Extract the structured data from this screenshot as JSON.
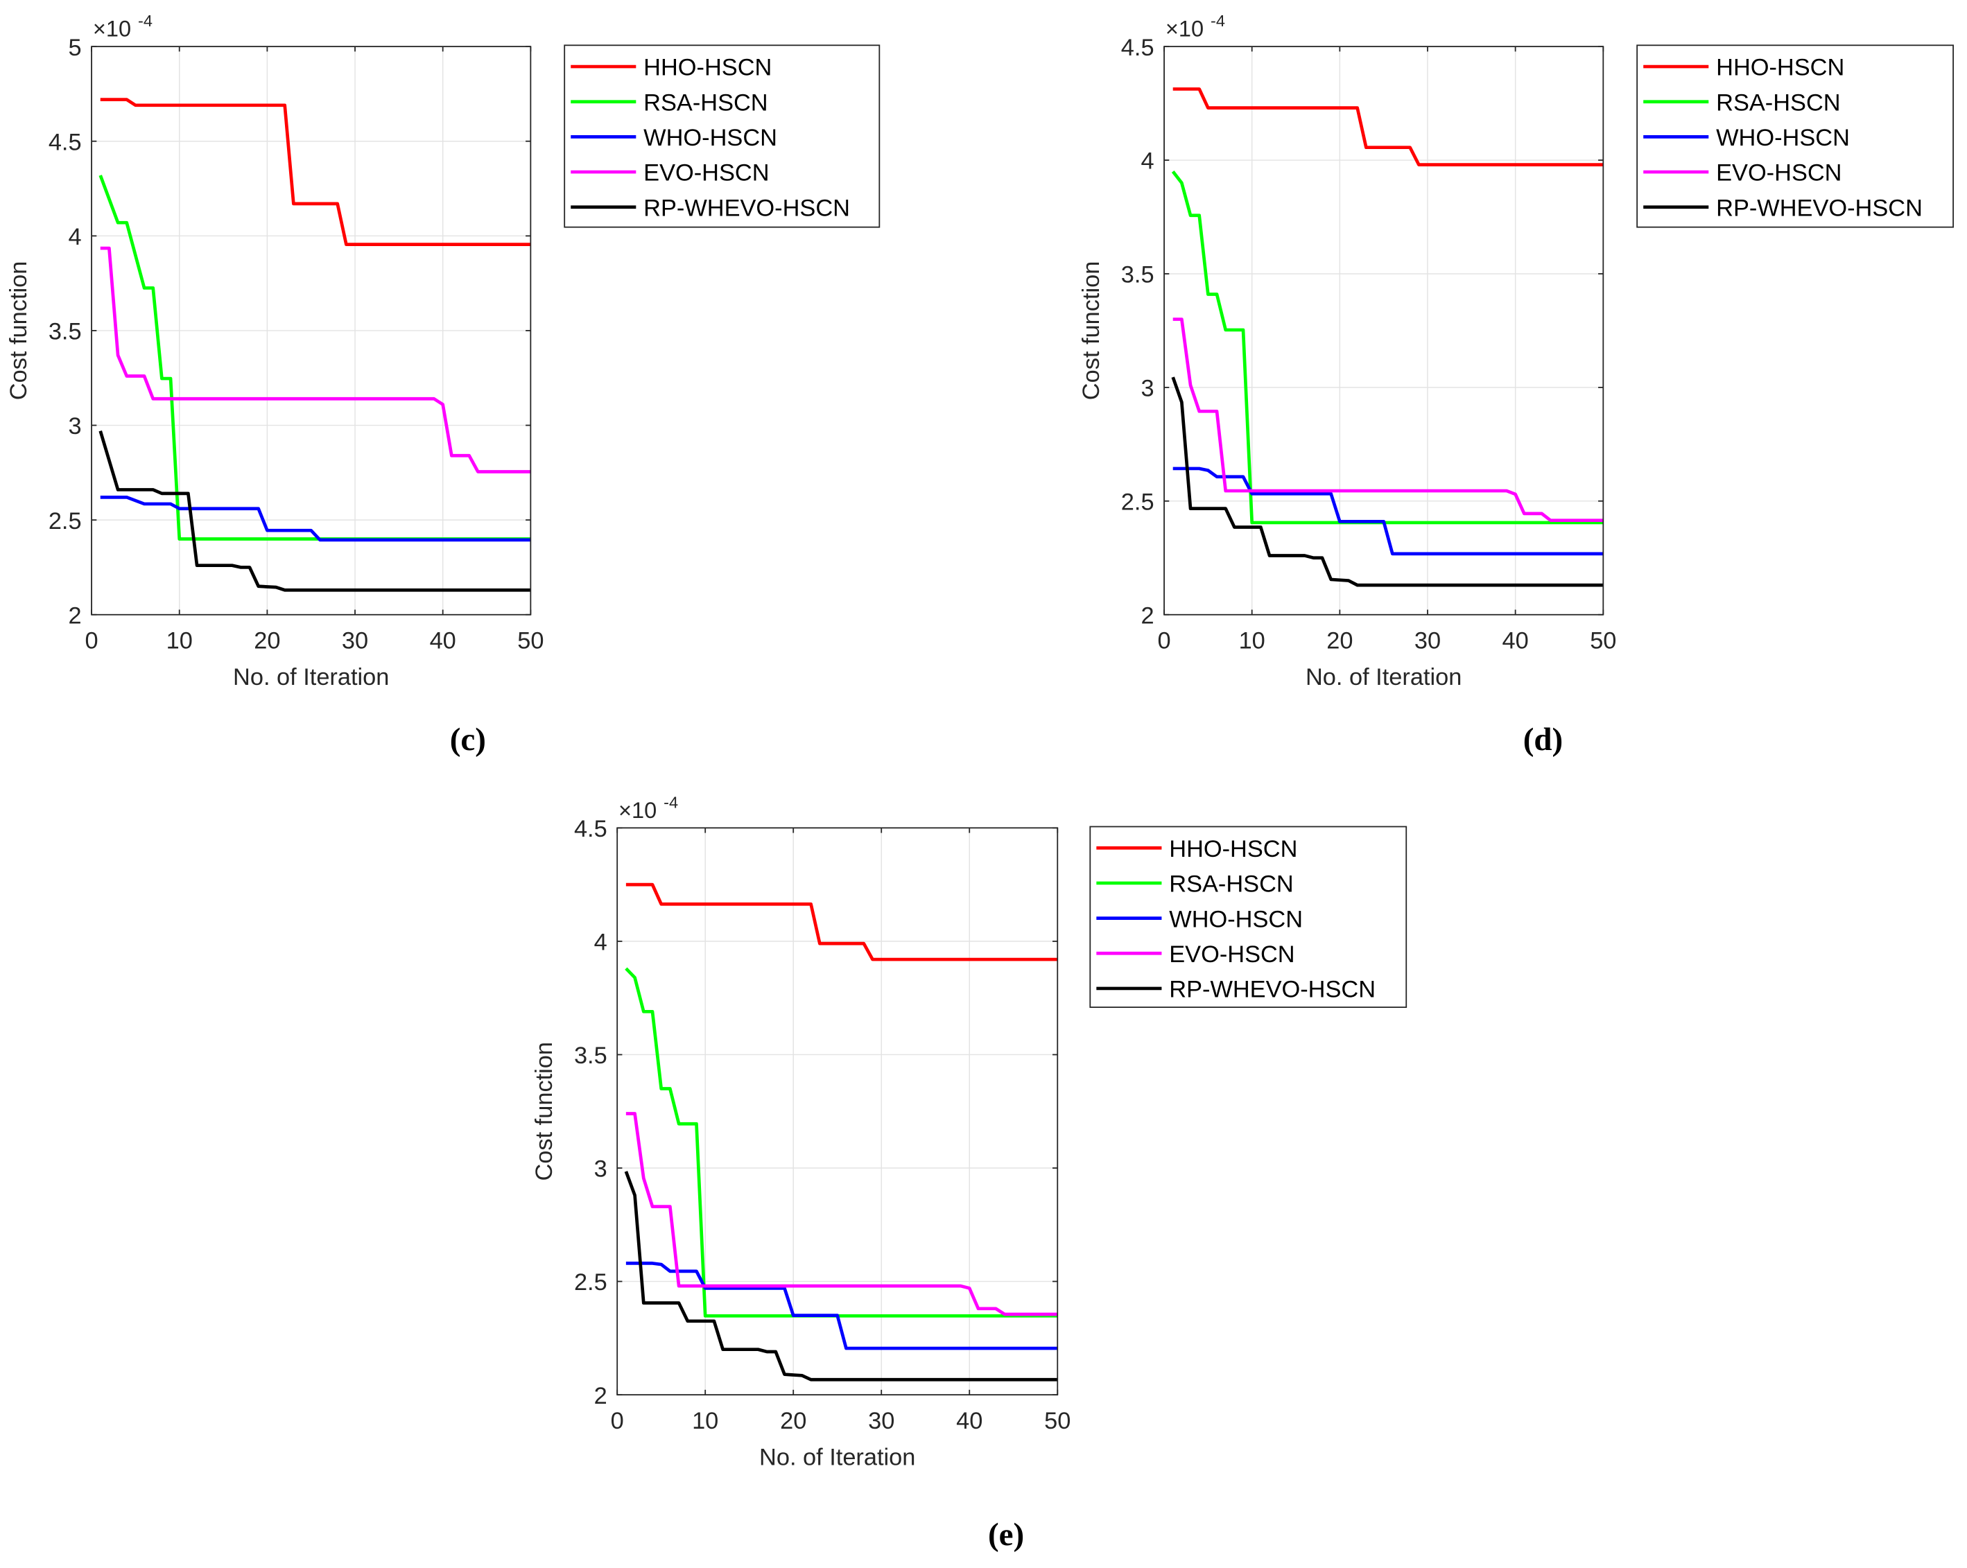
{
  "chart_data": [
    {
      "type": "line",
      "title": "(c)",
      "xlabel": "No. of Iteration",
      "ylabel": "Cost function",
      "y_multiplier_base": "×10",
      "y_multiplier_exp": "-4",
      "xlim": [
        0,
        50
      ],
      "ylim": [
        2,
        5
      ],
      "xticks": [
        0,
        10,
        20,
        30,
        40,
        50
      ],
      "yticks": [
        2,
        2.5,
        3,
        3.5,
        4,
        4.5,
        5
      ],
      "grid": true,
      "legend_position": "outside-right-top",
      "series": [
        {
          "name": "HHO-HSCN",
          "color": "#ff0000",
          "points": [
            [
              1,
              4.72
            ],
            [
              4,
              4.72
            ],
            [
              5,
              4.69
            ],
            [
              22,
              4.69
            ],
            [
              23,
              4.17
            ],
            [
              28,
              4.17
            ],
            [
              29,
              3.955
            ],
            [
              50,
              3.955
            ]
          ]
        },
        {
          "name": "RSA-HSCN",
          "color": "#00ff00",
          "points": [
            [
              1,
              4.32
            ],
            [
              3,
              4.07
            ],
            [
              4,
              4.07
            ],
            [
              6,
              3.725
            ],
            [
              7,
              3.725
            ],
            [
              8,
              3.247
            ],
            [
              9,
              3.247
            ],
            [
              10,
              2.4
            ],
            [
              50,
              2.4
            ]
          ]
        },
        {
          "name": "WHO-HSCN",
          "color": "#0000ff",
          "points": [
            [
              1,
              2.62
            ],
            [
              4,
              2.62
            ],
            [
              6,
              2.585
            ],
            [
              9,
              2.585
            ],
            [
              10,
              2.56
            ],
            [
              19,
              2.56
            ],
            [
              20,
              2.445
            ],
            [
              25,
              2.445
            ],
            [
              26,
              2.395
            ],
            [
              50,
              2.395
            ]
          ]
        },
        {
          "name": "EVO-HSCN",
          "color": "#ff00ff",
          "points": [
            [
              1,
              3.935
            ],
            [
              2,
              3.935
            ],
            [
              3,
              3.37
            ],
            [
              4,
              3.26
            ],
            [
              6,
              3.26
            ],
            [
              7,
              3.14
            ],
            [
              39,
              3.14
            ],
            [
              40,
              3.11
            ],
            [
              41,
              2.84
            ],
            [
              43,
              2.84
            ],
            [
              44,
              2.755
            ],
            [
              50,
              2.755
            ]
          ]
        },
        {
          "name": "RP-WHEVO-HSCN",
          "color": "#000000",
          "points": [
            [
              1,
              2.97
            ],
            [
              3,
              2.66
            ],
            [
              7,
              2.66
            ],
            [
              8,
              2.64
            ],
            [
              11,
              2.64
            ],
            [
              12,
              2.26
            ],
            [
              16,
              2.26
            ],
            [
              17,
              2.25
            ],
            [
              18,
              2.25
            ],
            [
              19,
              2.15
            ],
            [
              21,
              2.145
            ],
            [
              22,
              2.13
            ],
            [
              50,
              2.13
            ]
          ]
        }
      ]
    },
    {
      "type": "line",
      "title": "(d)",
      "xlabel": "No. of Iteration",
      "ylabel": "Cost function",
      "y_multiplier_base": "×10",
      "y_multiplier_exp": "-4",
      "xlim": [
        0,
        50
      ],
      "ylim": [
        2,
        4.5
      ],
      "xticks": [
        0,
        10,
        20,
        30,
        40,
        50
      ],
      "yticks": [
        2,
        2.5,
        3,
        3.5,
        4,
        4.5
      ],
      "grid": true,
      "legend_position": "outside-right-top",
      "series": [
        {
          "name": "HHO-HSCN",
          "color": "#ff0000",
          "points": [
            [
              1,
              4.313
            ],
            [
              4,
              4.313
            ],
            [
              5,
              4.23
            ],
            [
              22,
              4.23
            ],
            [
              23,
              4.056
            ],
            [
              28,
              4.056
            ],
            [
              29,
              3.98
            ],
            [
              50,
              3.98
            ]
          ]
        },
        {
          "name": "RSA-HSCN",
          "color": "#00ff00",
          "points": [
            [
              1,
              3.95
            ],
            [
              2,
              3.9
            ],
            [
              3,
              3.757
            ],
            [
              4,
              3.757
            ],
            [
              5,
              3.41
            ],
            [
              6,
              3.41
            ],
            [
              7,
              3.253
            ],
            [
              9,
              3.253
            ],
            [
              10,
              2.405
            ],
            [
              50,
              2.405
            ]
          ]
        },
        {
          "name": "WHO-HSCN",
          "color": "#0000ff",
          "points": [
            [
              1,
              2.643
            ],
            [
              4,
              2.643
            ],
            [
              5,
              2.635
            ],
            [
              6,
              2.607
            ],
            [
              9,
              2.607
            ],
            [
              10,
              2.532
            ],
            [
              19,
              2.532
            ],
            [
              20,
              2.41
            ],
            [
              25,
              2.41
            ],
            [
              26,
              2.268
            ],
            [
              50,
              2.268
            ]
          ]
        },
        {
          "name": "EVO-HSCN",
          "color": "#ff00ff",
          "points": [
            [
              1,
              3.3
            ],
            [
              2,
              3.3
            ],
            [
              3,
              3.01
            ],
            [
              4,
              2.895
            ],
            [
              6,
              2.895
            ],
            [
              7,
              2.545
            ],
            [
              39,
              2.545
            ],
            [
              40,
              2.53
            ],
            [
              41,
              2.445
            ],
            [
              43,
              2.445
            ],
            [
              44,
              2.415
            ],
            [
              50,
              2.415
            ]
          ]
        },
        {
          "name": "RP-WHEVO-HSCN",
          "color": "#000000",
          "points": [
            [
              1,
              3.045
            ],
            [
              2,
              2.935
            ],
            [
              3,
              2.467
            ],
            [
              7,
              2.467
            ],
            [
              8,
              2.385
            ],
            [
              11,
              2.385
            ],
            [
              12,
              2.26
            ],
            [
              16,
              2.26
            ],
            [
              17,
              2.25
            ],
            [
              18,
              2.25
            ],
            [
              19,
              2.155
            ],
            [
              21,
              2.15
            ],
            [
              22,
              2.13
            ],
            [
              50,
              2.13
            ]
          ]
        }
      ]
    },
    {
      "type": "line",
      "title": "(e)",
      "xlabel": "No. of Iteration",
      "ylabel": "Cost function",
      "y_multiplier_base": "×10",
      "y_multiplier_exp": "-4",
      "xlim": [
        0,
        50
      ],
      "ylim": [
        2,
        4.5
      ],
      "xticks": [
        0,
        10,
        20,
        30,
        40,
        50
      ],
      "yticks": [
        2,
        2.5,
        3,
        3.5,
        4,
        4.5
      ],
      "grid": true,
      "legend_position": "outside-right-top",
      "series": [
        {
          "name": "HHO-HSCN",
          "color": "#ff0000",
          "points": [
            [
              1,
              4.25
            ],
            [
              4,
              4.25
            ],
            [
              5,
              4.164
            ],
            [
              22,
              4.164
            ],
            [
              23,
              3.99
            ],
            [
              28,
              3.99
            ],
            [
              29,
              3.92
            ],
            [
              50,
              3.92
            ]
          ]
        },
        {
          "name": "RSA-HSCN",
          "color": "#00ff00",
          "points": [
            [
              1,
              3.88
            ],
            [
              2,
              3.84
            ],
            [
              3,
              3.69
            ],
            [
              4,
              3.69
            ],
            [
              5,
              3.35
            ],
            [
              6,
              3.35
            ],
            [
              7,
              3.195
            ],
            [
              9,
              3.195
            ],
            [
              10,
              2.348
            ],
            [
              50,
              2.348
            ]
          ]
        },
        {
          "name": "WHO-HSCN",
          "color": "#0000ff",
          "points": [
            [
              1,
              2.58
            ],
            [
              4,
              2.58
            ],
            [
              5,
              2.575
            ],
            [
              6,
              2.545
            ],
            [
              9,
              2.545
            ],
            [
              10,
              2.47
            ],
            [
              19,
              2.47
            ],
            [
              20,
              2.35
            ],
            [
              25,
              2.35
            ],
            [
              26,
              2.205
            ],
            [
              50,
              2.205
            ]
          ]
        },
        {
          "name": "EVO-HSCN",
          "color": "#ff00ff",
          "points": [
            [
              1,
              3.24
            ],
            [
              2,
              3.24
            ],
            [
              3,
              2.955
            ],
            [
              4,
              2.83
            ],
            [
              6,
              2.83
            ],
            [
              7,
              2.48
            ],
            [
              39,
              2.48
            ],
            [
              40,
              2.47
            ],
            [
              41,
              2.38
            ],
            [
              43,
              2.38
            ],
            [
              44,
              2.355
            ],
            [
              50,
              2.355
            ]
          ]
        },
        {
          "name": "RP-WHEVO-HSCN",
          "color": "#000000",
          "points": [
            [
              1,
              2.985
            ],
            [
              2,
              2.88
            ],
            [
              3,
              2.405
            ],
            [
              7,
              2.405
            ],
            [
              8,
              2.325
            ],
            [
              11,
              2.325
            ],
            [
              12,
              2.2
            ],
            [
              16,
              2.2
            ],
            [
              17,
              2.19
            ],
            [
              18,
              2.19
            ],
            [
              19,
              2.09
            ],
            [
              21,
              2.085
            ],
            [
              22,
              2.067
            ],
            [
              50,
              2.067
            ]
          ]
        }
      ]
    }
  ]
}
